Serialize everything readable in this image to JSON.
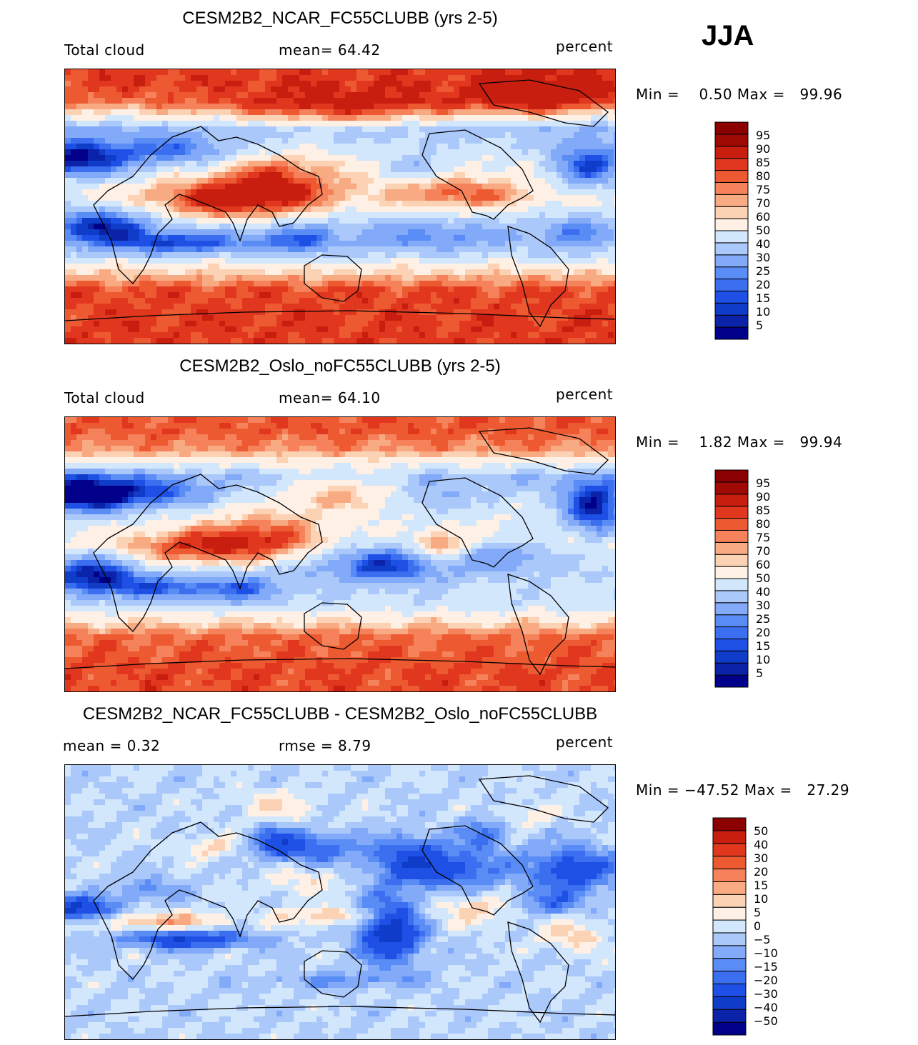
{
  "season": "JJA",
  "colors": {
    "abs": [
      "#00008b",
      "#0a23a8",
      "#0f3cc8",
      "#1e50e6",
      "#3c6ef0",
      "#5a8cf5",
      "#82aaf8",
      "#aac8fa",
      "#d2e6fc",
      "#fff0e6",
      "#fcd2b4",
      "#f8aa82",
      "#f5825a",
      "#ed5a32",
      "#e1371e",
      "#c81e0f",
      "#a00a05",
      "#8b0000"
    ],
    "diff": [
      "#00008b",
      "#0a23a8",
      "#0f3cc8",
      "#1e50e6",
      "#3c6ef0",
      "#5a8cf5",
      "#82aaf8",
      "#aac8fa",
      "#d2e6fc",
      "#fff0e6",
      "#fcd2b4",
      "#f8aa82",
      "#f5825a",
      "#ed5a32",
      "#e1371e",
      "#c81e0f",
      "#8b0000"
    ]
  },
  "panels": [
    {
      "title": "CESM2B2_NCAR_FC55CLUBB (yrs 2-5)",
      "left_label": "Total cloud",
      "center_label": "mean=   64.42",
      "right_label": "percent",
      "minmax": "Min =    0.50 Max =   99.96",
      "colorbar_levels": [
        "5",
        "10",
        "15",
        "20",
        "25",
        "30",
        "40",
        "50",
        "60",
        "70",
        "75",
        "80",
        "85",
        "90",
        "95"
      ]
    },
    {
      "title": "CESM2B2_Oslo_noFC55CLUBB (yrs 2-5)",
      "left_label": "Total cloud",
      "center_label": "mean=   64.10",
      "right_label": "percent",
      "minmax": "Min =    1.82 Max =   99.94",
      "colorbar_levels": [
        "5",
        "10",
        "15",
        "20",
        "25",
        "30",
        "40",
        "50",
        "60",
        "70",
        "75",
        "80",
        "85",
        "90",
        "95"
      ]
    },
    {
      "title": "CESM2B2_NCAR_FC55CLUBB - CESM2B2_Oslo_noFC55CLUBB",
      "left_label": "mean =    0.32",
      "center_label": "rmse =    8.79",
      "right_label": "percent",
      "minmax": "Min = −47.52 Max =   27.29",
      "colorbar_levels": [
        "−50",
        "−40",
        "−30",
        "−20",
        "−15",
        "−10",
        "−5",
        "0",
        "5",
        "10",
        "15",
        "20",
        "30",
        "40",
        "50"
      ]
    }
  ],
  "chart_data": [
    {
      "type": "heatmap",
      "title": "CESM2B2_NCAR_FC55CLUBB (yrs 2-5)",
      "variable": "Total cloud",
      "units": "percent",
      "season": "JJA",
      "mean": 64.42,
      "min": 0.5,
      "max": 99.96,
      "levels": [
        5,
        10,
        15,
        20,
        25,
        30,
        40,
        50,
        60,
        70,
        75,
        80,
        85,
        90,
        95
      ]
    },
    {
      "type": "heatmap",
      "title": "CESM2B2_Oslo_noFC55CLUBB (yrs 2-5)",
      "variable": "Total cloud",
      "units": "percent",
      "season": "JJA",
      "mean": 64.1,
      "min": 1.82,
      "max": 99.94,
      "levels": [
        5,
        10,
        15,
        20,
        25,
        30,
        40,
        50,
        60,
        70,
        75,
        80,
        85,
        90,
        95
      ]
    },
    {
      "type": "heatmap",
      "title": "CESM2B2_NCAR_FC55CLUBB - CESM2B2_Oslo_noFC55CLUBB",
      "units": "percent",
      "season": "JJA",
      "mean": 0.32,
      "rmse": 8.79,
      "min": -47.52,
      "max": 27.29,
      "levels": [
        -50,
        -40,
        -30,
        -20,
        -15,
        -10,
        -5,
        0,
        5,
        10,
        15,
        20,
        30,
        40,
        50
      ]
    }
  ]
}
